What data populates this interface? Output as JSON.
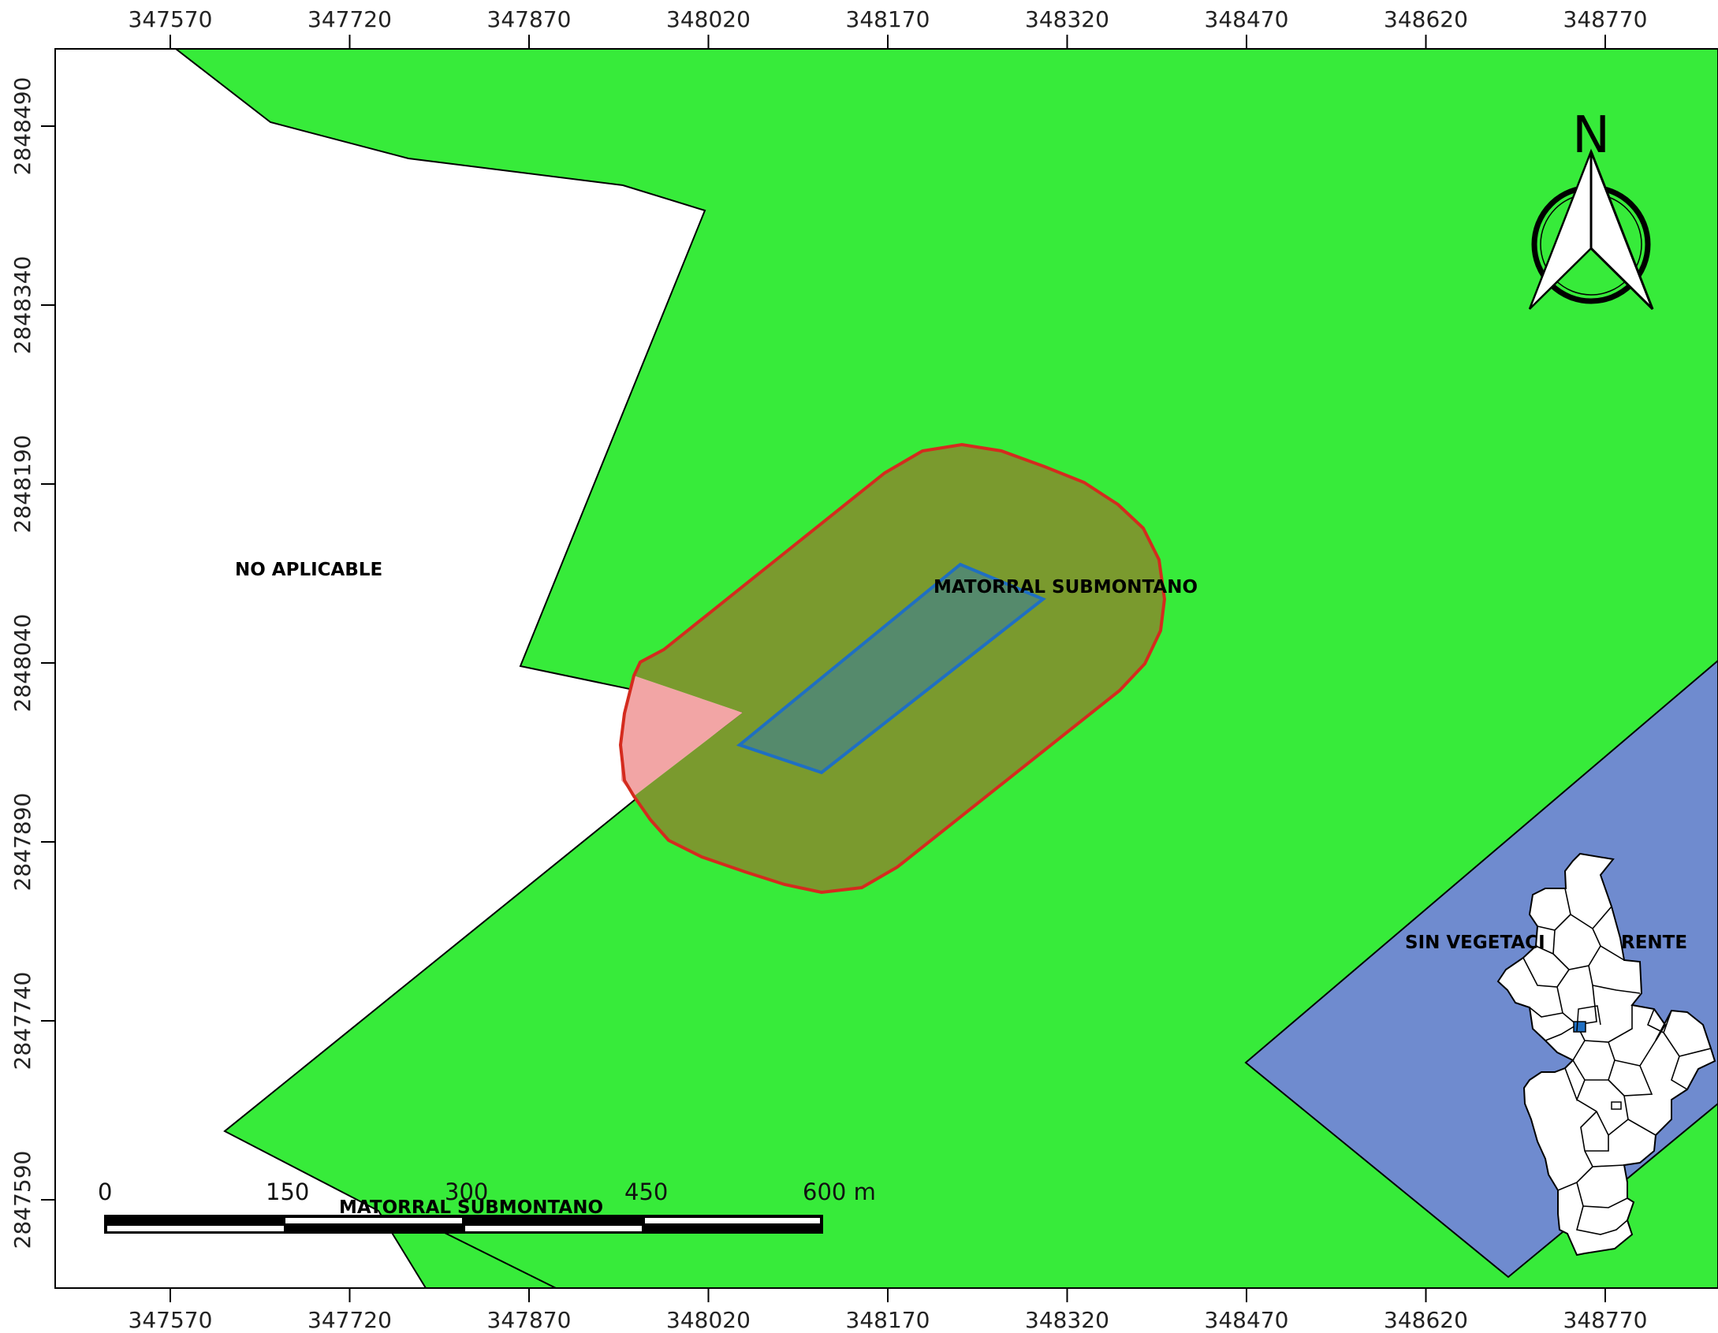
{
  "map": {
    "x_ticks": [
      "347570",
      "347720",
      "347870",
      "348020",
      "348170",
      "348320",
      "348470",
      "348620",
      "348770"
    ],
    "y_ticks": [
      "2848490",
      "2848340",
      "2848190",
      "2848040",
      "2847890",
      "2847740",
      "2847590"
    ],
    "zones": {
      "no_aplicable": "NO APLICABLE",
      "matorral_center": "MATORRAL SUBMONTANO",
      "matorral_bottom": "MATORRAL SUBMONTANO",
      "sin_vegetacion_left": "SIN VEGETACI",
      "sin_vegetacion_right": "RENTE"
    },
    "north_arrow": "N",
    "scale_bar": {
      "labels": [
        "0",
        "150",
        "300",
        "450",
        "600 m"
      ]
    },
    "colors": {
      "matorral": "#37eb3a",
      "sin_vegetacion": "#6f8bcf",
      "buffer_fill": "#7a9a2e",
      "buffer_stroke": "#d42b1e",
      "buffer_outside": "#f2a5a5",
      "project_fill": "#558a6c",
      "project_stroke": "#1f6fc2"
    }
  }
}
